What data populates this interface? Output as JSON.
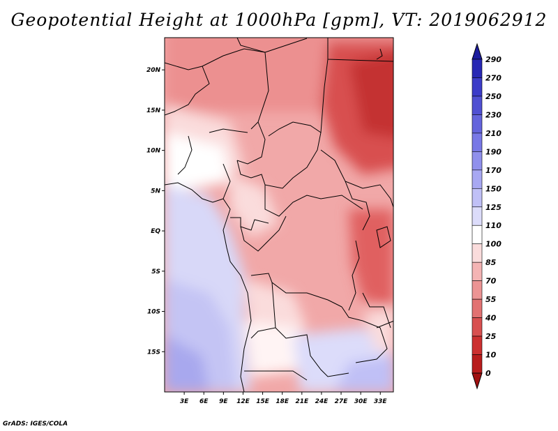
{
  "title": "Geopotential Height at 1000hPa [gpm], VT: 2019062912",
  "credit": "GrADS: IGES/COLA",
  "map": {
    "lon_range": [
      0,
      35
    ],
    "lat_range": [
      -20,
      24
    ],
    "x_ticks": [
      "3E",
      "6E",
      "9E",
      "12E",
      "15E",
      "18E",
      "21E",
      "24E",
      "27E",
      "30E",
      "33E"
    ],
    "y_ticks": [
      "20N",
      "15N",
      "10N",
      "5N",
      "EQ",
      "5S",
      "10S",
      "15S"
    ]
  },
  "colorbar": {
    "labels": [
      "290",
      "270",
      "250",
      "230",
      "210",
      "190",
      "170",
      "150",
      "125",
      "110",
      "100",
      "85",
      "70",
      "55",
      "40",
      "25",
      "10",
      "0"
    ],
    "colors": [
      "#1c1c9e",
      "#2828b4",
      "#3c3cc8",
      "#5050d2",
      "#6464dc",
      "#7878e6",
      "#9090ec",
      "#a8a8f2",
      "#c0c0f6",
      "#dcdcfa",
      "#ffffff",
      "#fadcdc",
      "#f4b4b4",
      "#ec9494",
      "#e27272",
      "#d85050",
      "#cc3030",
      "#b81c1c",
      "#a01010"
    ]
  }
}
